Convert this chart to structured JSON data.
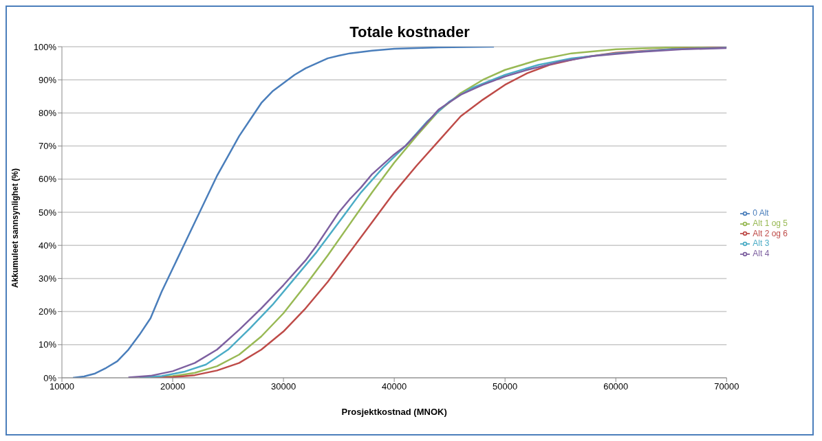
{
  "chart_data": {
    "type": "line",
    "title": "Totale kostnader",
    "xlabel": "Prosjektkostnad  (MNOK)",
    "ylabel": "Akkumuleet sannsynlighet (%)",
    "xlim": [
      10000,
      70000
    ],
    "xticks": [
      10000,
      20000,
      30000,
      40000,
      50000,
      60000,
      70000
    ],
    "ylim": [
      0,
      100
    ],
    "yticks": [
      {
        "value": 0,
        "label": "0%"
      },
      {
        "value": 10,
        "label": "10%"
      },
      {
        "value": 20,
        "label": "20%"
      },
      {
        "value": 30,
        "label": "30%"
      },
      {
        "value": 40,
        "label": "40%"
      },
      {
        "value": 50,
        "label": "50%"
      },
      {
        "value": 60,
        "label": "60%"
      },
      {
        "value": 70,
        "label": "70%"
      },
      {
        "value": 80,
        "label": "80%"
      },
      {
        "value": 90,
        "label": "90%"
      },
      {
        "value": 100,
        "label": "100%"
      }
    ],
    "grid": "y",
    "legend": "right",
    "marker": "none",
    "line_style": "solid",
    "series": [
      {
        "name": "0 Alt",
        "color": "#4a7ebb",
        "x": [
          11000,
          12000,
          13000,
          14000,
          15000,
          16000,
          17000,
          18000,
          19000,
          20000,
          21000,
          22000,
          23000,
          24000,
          25000,
          26000,
          27000,
          28000,
          29000,
          30000,
          31000,
          32000,
          33000,
          34000,
          35000,
          36000,
          38000,
          40000,
          44000,
          49000
        ],
        "values": [
          0,
          0.4,
          1.3,
          3,
          5,
          8.5,
          13,
          18,
          26,
          33,
          40,
          47,
          54,
          61,
          67,
          73,
          78,
          83,
          86.5,
          89,
          91.5,
          93.5,
          95,
          96.5,
          97.3,
          98,
          98.8,
          99.4,
          99.8,
          100
        ]
      },
      {
        "name": "Alt 1 og 5",
        "color": "#98b954",
        "x": [
          18000,
          20000,
          22000,
          24000,
          26000,
          28000,
          30000,
          32000,
          34000,
          36000,
          38000,
          40000,
          42000,
          44000,
          46000,
          48000,
          50000,
          53000,
          56000,
          60000,
          65000,
          70000
        ],
        "values": [
          0.1,
          0.5,
          1.5,
          3.5,
          7,
          12.5,
          19.5,
          28,
          37,
          46.5,
          56,
          65,
          73,
          80.5,
          86,
          90,
          93,
          96,
          98,
          99.2,
          99.8,
          100
        ]
      },
      {
        "name": "Alt 2 og 6",
        "color": "#be4b48",
        "x": [
          18000,
          20000,
          22000,
          24000,
          26000,
          28000,
          30000,
          32000,
          34000,
          36000,
          38000,
          40000,
          42000,
          44000,
          46000,
          48000,
          50000,
          52000,
          54000,
          57000,
          60000,
          65000,
          70000
        ],
        "values": [
          0,
          0.2,
          0.8,
          2.2,
          4.5,
          8.5,
          14,
          21,
          29,
          38,
          47,
          56,
          64,
          71.5,
          79,
          84,
          88.5,
          92,
          94.5,
          96.8,
          98.2,
          99.3,
          99.8
        ]
      },
      {
        "name": "Alt 3",
        "color": "#4bacc6",
        "x": [
          17000,
          19000,
          21000,
          23000,
          25000,
          27000,
          29000,
          31000,
          33000,
          35000,
          37000,
          39000,
          41000,
          43000,
          45000,
          47000,
          50000,
          53000,
          56000,
          60000,
          65000,
          70000
        ],
        "values": [
          0.1,
          0.5,
          1.8,
          4,
          8.5,
          15,
          22,
          30,
          38,
          47,
          56,
          63.5,
          70,
          77.5,
          83.5,
          87.5,
          91.5,
          94.5,
          96.5,
          98,
          99.2,
          99.7
        ]
      },
      {
        "name": "Alt 4",
        "color": "#7d60a0",
        "x": [
          16000,
          18000,
          20000,
          22000,
          24000,
          26000,
          28000,
          30000,
          32000,
          33000,
          34000,
          35000,
          36000,
          37000,
          38000,
          40000,
          41000,
          42000,
          44000,
          46000,
          48000,
          50000,
          52000,
          55000,
          58000,
          62000,
          66000,
          70000
        ],
        "values": [
          0.1,
          0.6,
          2,
          4.5,
          8.5,
          14.5,
          21,
          28,
          35.5,
          40,
          45,
          50,
          54,
          57.5,
          61.5,
          67.5,
          70,
          73.5,
          81,
          85.5,
          88.5,
          91,
          93,
          95.5,
          97.2,
          98.4,
          99.2,
          99.6
        ]
      }
    ]
  }
}
